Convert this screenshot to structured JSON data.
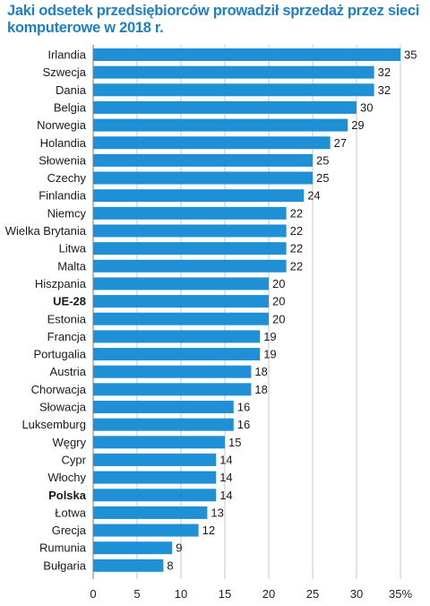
{
  "chart_data": {
    "type": "bar",
    "orientation": "horizontal",
    "title": "Jaki odsetek przedsiębiorców prowadził sprzedaż przez sieci komputerowe w 2018 r.",
    "xlabel": "",
    "ylabel": "",
    "xlim": [
      0,
      35
    ],
    "x_ticks": [
      "0",
      "5",
      "10",
      "15",
      "20",
      "25",
      "30",
      "35%"
    ],
    "grid": "vertical",
    "bar_color": "#1f8fd6",
    "categories": [
      "Irlandia",
      "Szwecja",
      "Dania",
      "Belgia",
      "Norwegia",
      "Holandia",
      "Słowenia",
      "Czechy",
      "Finlandia",
      "Niemcy",
      "Wielka Brytania",
      "Litwa",
      "Malta",
      "Hiszpania",
      "UE-28",
      "Estonia",
      "Francja",
      "Portugalia",
      "Austria",
      "Chorwacja",
      "Słowacja",
      "Luksemburg",
      "Węgry",
      "Cypr",
      "Włochy",
      "Polska",
      "Łotwa",
      "Grecja",
      "Rumunia",
      "Bułgaria"
    ],
    "values": [
      35,
      32,
      32,
      30,
      29,
      27,
      25,
      25,
      24,
      22,
      22,
      22,
      22,
      20,
      20,
      20,
      19,
      19,
      18,
      18,
      16,
      16,
      15,
      14,
      14,
      14,
      13,
      12,
      9,
      8
    ],
    "value_labels": [
      "35",
      "32",
      "32",
      "30",
      "29",
      "27",
      "25",
      "25",
      "24",
      "22",
      "22",
      "22",
      "22",
      "20",
      "20",
      "20",
      "19",
      "19",
      "18",
      "18",
      "16",
      "16",
      "15",
      "14",
      "14",
      "14",
      "13",
      "12",
      "9",
      "8"
    ],
    "bold_categories": [
      "UE-28",
      "Polska"
    ]
  }
}
